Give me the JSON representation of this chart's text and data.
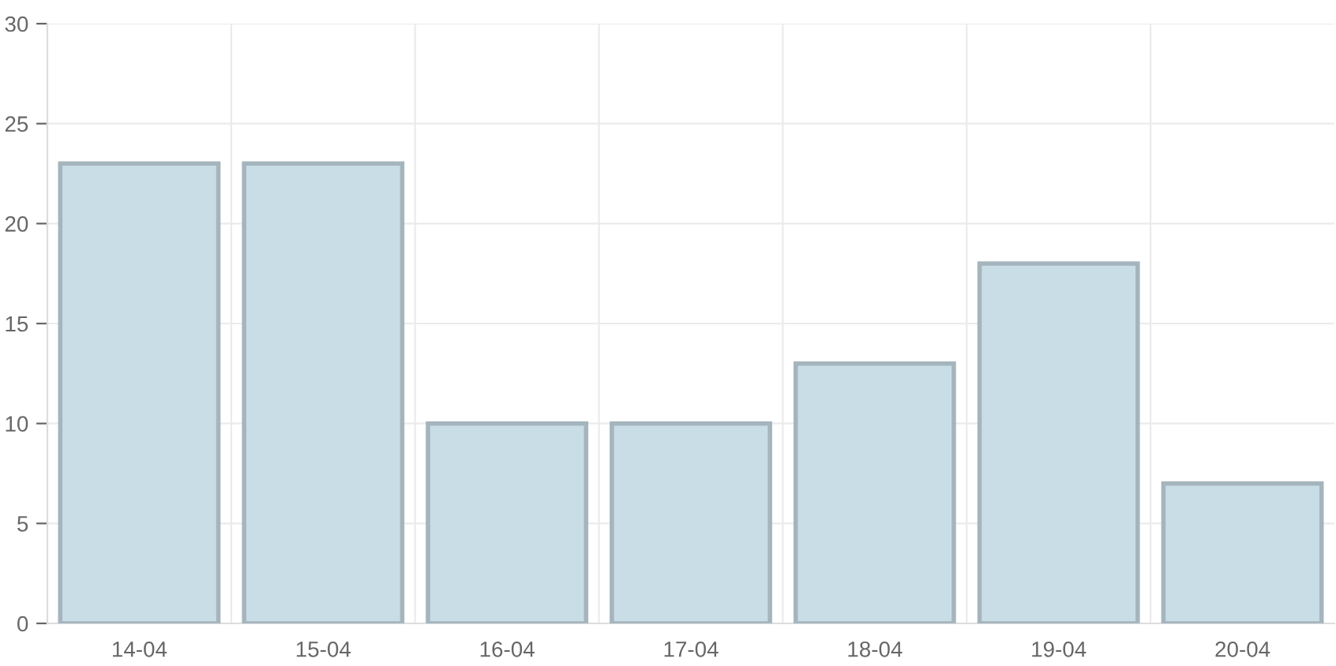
{
  "chart_data": {
    "type": "bar",
    "categories": [
      "14-04",
      "15-04",
      "16-04",
      "17-04",
      "18-04",
      "19-04",
      "20-04"
    ],
    "series": [
      {
        "color": "#c9dde6",
        "values": [
          23,
          23,
          10,
          10,
          13,
          18,
          7
        ]
      }
    ],
    "ylim": [
      0,
      30
    ],
    "yticks": [
      0,
      5,
      10,
      15,
      20,
      25,
      30
    ],
    "grid": true,
    "legend": false
  }
}
